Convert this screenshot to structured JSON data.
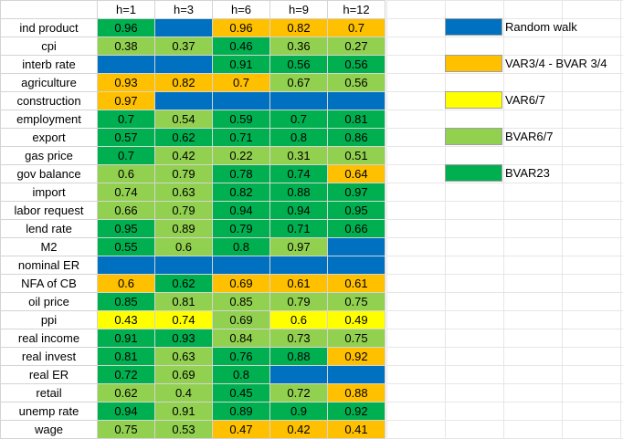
{
  "colors": {
    "rw": "#0070c0",
    "var34": "#ffc000",
    "var67": "#ffff00",
    "bvar67": "#92d050",
    "bvar23": "#00b050"
  },
  "headers": [
    "h=1",
    "h=3",
    "h=6",
    "h=9",
    "h=12"
  ],
  "rows": [
    {
      "label": "ind product",
      "cells": [
        {
          "v": "0.96",
          "c": "bvar23"
        },
        {
          "v": "",
          "c": "rw"
        },
        {
          "v": "0.96",
          "c": "var34"
        },
        {
          "v": "0.82",
          "c": "var34"
        },
        {
          "v": "0.7",
          "c": "var34"
        }
      ]
    },
    {
      "label": "cpi",
      "cells": [
        {
          "v": "0.38",
          "c": "bvar67"
        },
        {
          "v": "0.37",
          "c": "bvar67"
        },
        {
          "v": "0.46",
          "c": "bvar23"
        },
        {
          "v": "0.36",
          "c": "bvar67"
        },
        {
          "v": "0.27",
          "c": "bvar67"
        }
      ]
    },
    {
      "label": "interb rate",
      "cells": [
        {
          "v": "",
          "c": "rw"
        },
        {
          "v": "",
          "c": "rw"
        },
        {
          "v": "0.91",
          "c": "bvar23"
        },
        {
          "v": "0.56",
          "c": "bvar23"
        },
        {
          "v": "0.56",
          "c": "bvar23"
        }
      ]
    },
    {
      "label": "agriculture",
      "cells": [
        {
          "v": "0.93",
          "c": "var34"
        },
        {
          "v": "0.82",
          "c": "var34"
        },
        {
          "v": "0.7",
          "c": "var34"
        },
        {
          "v": "0.67",
          "c": "bvar67"
        },
        {
          "v": "0.56",
          "c": "bvar67"
        }
      ]
    },
    {
      "label": "construction",
      "cells": [
        {
          "v": "0.97",
          "c": "var34"
        },
        {
          "v": "",
          "c": "rw"
        },
        {
          "v": "",
          "c": "rw"
        },
        {
          "v": "",
          "c": "rw"
        },
        {
          "v": "",
          "c": "rw"
        }
      ]
    },
    {
      "label": "employment",
      "cells": [
        {
          "v": "0.7",
          "c": "bvar23"
        },
        {
          "v": "0.54",
          "c": "bvar67"
        },
        {
          "v": "0.59",
          "c": "bvar23"
        },
        {
          "v": "0.7",
          "c": "bvar23"
        },
        {
          "v": "0.81",
          "c": "bvar23"
        }
      ]
    },
    {
      "label": "export",
      "cells": [
        {
          "v": "0.57",
          "c": "bvar23"
        },
        {
          "v": "0.62",
          "c": "bvar23"
        },
        {
          "v": "0.71",
          "c": "bvar23"
        },
        {
          "v": "0.8",
          "c": "bvar23"
        },
        {
          "v": "0.86",
          "c": "bvar23"
        }
      ]
    },
    {
      "label": "gas price",
      "cells": [
        {
          "v": "0.7",
          "c": "bvar23"
        },
        {
          "v": "0.42",
          "c": "bvar67"
        },
        {
          "v": "0.22",
          "c": "bvar67"
        },
        {
          "v": "0.31",
          "c": "bvar67"
        },
        {
          "v": "0.51",
          "c": "bvar67"
        }
      ]
    },
    {
      "label": "gov balance",
      "cells": [
        {
          "v": "0.6",
          "c": "bvar67"
        },
        {
          "v": "0.79",
          "c": "bvar67"
        },
        {
          "v": "0.78",
          "c": "bvar23"
        },
        {
          "v": "0.74",
          "c": "bvar23"
        },
        {
          "v": "0.64",
          "c": "var34"
        }
      ]
    },
    {
      "label": "import",
      "cells": [
        {
          "v": "0.74",
          "c": "bvar67"
        },
        {
          "v": "0.63",
          "c": "bvar67"
        },
        {
          "v": "0.82",
          "c": "bvar23"
        },
        {
          "v": "0.88",
          "c": "bvar23"
        },
        {
          "v": "0.97",
          "c": "bvar23"
        }
      ]
    },
    {
      "label": "labor request",
      "cells": [
        {
          "v": "0.66",
          "c": "bvar67"
        },
        {
          "v": "0.79",
          "c": "bvar67"
        },
        {
          "v": "0.94",
          "c": "bvar23"
        },
        {
          "v": "0.94",
          "c": "bvar23"
        },
        {
          "v": "0.95",
          "c": "bvar23"
        }
      ]
    },
    {
      "label": "lend rate",
      "cells": [
        {
          "v": "0.95",
          "c": "bvar23"
        },
        {
          "v": "0.89",
          "c": "bvar67"
        },
        {
          "v": "0.79",
          "c": "bvar23"
        },
        {
          "v": "0.71",
          "c": "bvar23"
        },
        {
          "v": "0.66",
          "c": "bvar23"
        }
      ]
    },
    {
      "label": "M2",
      "cells": [
        {
          "v": "0.55",
          "c": "bvar23"
        },
        {
          "v": "0.6",
          "c": "bvar67"
        },
        {
          "v": "0.8",
          "c": "bvar23"
        },
        {
          "v": "0.97",
          "c": "bvar67"
        },
        {
          "v": "",
          "c": "rw"
        }
      ]
    },
    {
      "label": "nominal ER",
      "cells": [
        {
          "v": "",
          "c": "rw"
        },
        {
          "v": "",
          "c": "rw"
        },
        {
          "v": "",
          "c": "rw"
        },
        {
          "v": "",
          "c": "rw"
        },
        {
          "v": "",
          "c": "rw"
        }
      ]
    },
    {
      "label": "NFA of CB",
      "cells": [
        {
          "v": "0.6",
          "c": "var34"
        },
        {
          "v": "0.62",
          "c": "bvar23"
        },
        {
          "v": "0.69",
          "c": "var34"
        },
        {
          "v": "0.61",
          "c": "var34"
        },
        {
          "v": "0.61",
          "c": "var34"
        }
      ]
    },
    {
      "label": "oil price",
      "cells": [
        {
          "v": "0.85",
          "c": "bvar23"
        },
        {
          "v": "0.81",
          "c": "bvar67"
        },
        {
          "v": "0.85",
          "c": "bvar67"
        },
        {
          "v": "0.79",
          "c": "bvar67"
        },
        {
          "v": "0.75",
          "c": "bvar67"
        }
      ]
    },
    {
      "label": "ppi",
      "cells": [
        {
          "v": "0.43",
          "c": "var67"
        },
        {
          "v": "0.74",
          "c": "var67"
        },
        {
          "v": "0.69",
          "c": "bvar67"
        },
        {
          "v": "0.6",
          "c": "var67"
        },
        {
          "v": "0.49",
          "c": "var67"
        }
      ]
    },
    {
      "label": "real income",
      "cells": [
        {
          "v": "0.91",
          "c": "bvar23"
        },
        {
          "v": "0.93",
          "c": "bvar23"
        },
        {
          "v": "0.84",
          "c": "bvar67"
        },
        {
          "v": "0.73",
          "c": "bvar67"
        },
        {
          "v": "0.75",
          "c": "bvar67"
        }
      ]
    },
    {
      "label": "real invest",
      "cells": [
        {
          "v": "0.81",
          "c": "bvar23"
        },
        {
          "v": "0.63",
          "c": "bvar67"
        },
        {
          "v": "0.76",
          "c": "bvar23"
        },
        {
          "v": "0.88",
          "c": "bvar23"
        },
        {
          "v": "0.92",
          "c": "var34"
        }
      ]
    },
    {
      "label": "real ER",
      "cells": [
        {
          "v": "0.72",
          "c": "bvar23"
        },
        {
          "v": "0.69",
          "c": "bvar67"
        },
        {
          "v": "0.8",
          "c": "bvar23"
        },
        {
          "v": "",
          "c": "rw"
        },
        {
          "v": "",
          "c": "rw"
        }
      ]
    },
    {
      "label": "retail",
      "cells": [
        {
          "v": "0.62",
          "c": "bvar67"
        },
        {
          "v": "0.4",
          "c": "bvar67"
        },
        {
          "v": "0.45",
          "c": "bvar23"
        },
        {
          "v": "0.72",
          "c": "bvar67"
        },
        {
          "v": "0.88",
          "c": "var34"
        }
      ]
    },
    {
      "label": "unemp rate",
      "cells": [
        {
          "v": "0.94",
          "c": "bvar23"
        },
        {
          "v": "0.91",
          "c": "bvar67"
        },
        {
          "v": "0.89",
          "c": "bvar23"
        },
        {
          "v": "0.9",
          "c": "bvar23"
        },
        {
          "v": "0.92",
          "c": "bvar23"
        }
      ]
    },
    {
      "label": "wage",
      "cells": [
        {
          "v": "0.75",
          "c": "bvar67"
        },
        {
          "v": "0.53",
          "c": "bvar67"
        },
        {
          "v": "0.47",
          "c": "var34"
        },
        {
          "v": "0.42",
          "c": "var34"
        },
        {
          "v": "0.41",
          "c": "var34"
        }
      ]
    }
  ],
  "legend": [
    {
      "label": "Random walk",
      "c": "rw"
    },
    {
      "label": "VAR3/4 - BVAR 3/4",
      "c": "var34"
    },
    {
      "label": "VAR6/7",
      "c": "var67"
    },
    {
      "label": "BVAR6/7",
      "c": "bvar67"
    },
    {
      "label": "BVAR23",
      "c": "bvar23"
    }
  ]
}
